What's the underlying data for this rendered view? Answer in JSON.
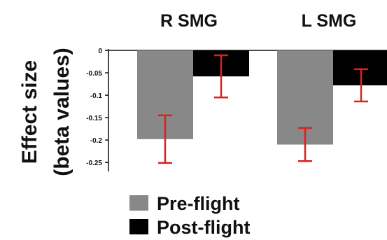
{
  "chart_data": {
    "type": "bar",
    "ylabel_line1": "Effect size",
    "ylabel_line2": "(beta values)",
    "ylim": [
      -0.27,
      0
    ],
    "yticks": [
      0,
      -0.05,
      -0.1,
      -0.15,
      -0.2,
      -0.25
    ],
    "ytick_labels": [
      "0",
      "-0.05",
      "-0.1",
      "-0.15",
      "-0.2",
      "-0.25"
    ],
    "groups": [
      {
        "title": "R SMG",
        "bars": [
          {
            "series": "Pre-flight",
            "value": -0.198,
            "error": 0.053
          },
          {
            "series": "Post-flight",
            "value": -0.058,
            "error": 0.047
          }
        ]
      },
      {
        "title": "L SMG",
        "bars": [
          {
            "series": "Pre-flight",
            "value": -0.21,
            "error": 0.037
          },
          {
            "series": "Post-flight",
            "value": -0.078,
            "error": 0.036
          }
        ]
      }
    ],
    "series": [
      {
        "name": "Pre-flight",
        "color": "#888888"
      },
      {
        "name": "Post-flight",
        "color": "#000000"
      }
    ],
    "error_bar_color": "#e0201c",
    "legend_placement": "bottom-left",
    "grid": false
  }
}
